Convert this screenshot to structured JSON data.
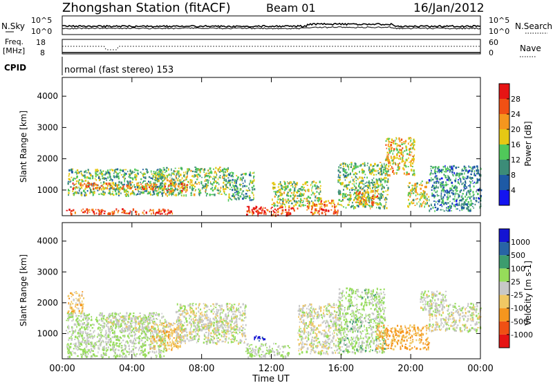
{
  "header": {
    "station": "Zhongshan Station (fitACF)",
    "beam": "Beam 01",
    "date": "16/Jan/2012"
  },
  "panels": {
    "nsky": {
      "label": "N.Sky",
      "right_label": "N.Search",
      "left_ticks": [
        "10^5",
        "10^0"
      ],
      "right_ticks": [
        "10^5",
        "10^0"
      ]
    },
    "freq": {
      "label_line1": "Freq.",
      "label_line2": "[MHz]",
      "right_label": "Nave",
      "left_ticks": [
        "18",
        "8"
      ],
      "right_ticks": [
        "60",
        "0"
      ]
    },
    "cpid": {
      "label": "CPID",
      "text": "normal (fast stereo) 153"
    }
  },
  "time_axis": {
    "label": "Time UT",
    "ticks": [
      "00:00",
      "04:00",
      "08:00",
      "12:00",
      "16:00",
      "20:00",
      "00:00"
    ]
  },
  "range_axis": {
    "label": "Slant Range [km]",
    "ticks": [
      "1000",
      "2000",
      "3000",
      "4000"
    ]
  },
  "colors": {
    "power_scale": [
      "#1414f0",
      "#1e5aa5",
      "#3c8c78",
      "#50c85a",
      "#e6c814",
      "#f5961e",
      "#f05014",
      "#e61414"
    ],
    "velocity_scale": [
      "#e61414",
      "#f05014",
      "#f5961e",
      "#f0c864",
      "#c8c8c8",
      "#96dc5a",
      "#3c9c6e",
      "#2864a5",
      "#1414d2"
    ]
  },
  "chart_data": [
    {
      "type": "heatmap",
      "title": "",
      "xlabel": "Time UT",
      "ylabel": "Slant Range [km]",
      "xlim": [
        "00:00",
        "24:00"
      ],
      "ylim": [
        180,
        4600
      ],
      "colorbar": {
        "label": "Power [dB]",
        "ticks": [
          "4",
          "8",
          "12",
          "16",
          "20",
          "24",
          "28"
        ],
        "range": [
          0,
          30
        ]
      },
      "patches": [
        {
          "t0": 0.3,
          "t1": 5.8,
          "r0": 850,
          "r1": 1700,
          "level": 12
        },
        {
          "t0": 0.5,
          "t1": 5.5,
          "r0": 1050,
          "r1": 1250,
          "level": 22
        },
        {
          "t0": 0.2,
          "t1": 6.3,
          "r0": 250,
          "r1": 420,
          "level": 25
        },
        {
          "t0": 5.3,
          "t1": 9.5,
          "r0": 850,
          "r1": 1750,
          "level": 14
        },
        {
          "t0": 5.8,
          "t1": 7.2,
          "r0": 950,
          "r1": 1250,
          "level": 22
        },
        {
          "t0": 9.5,
          "t1": 11.0,
          "r0": 700,
          "r1": 1600,
          "level": 11
        },
        {
          "t0": 10.5,
          "t1": 13.5,
          "r0": 220,
          "r1": 500,
          "level": 27
        },
        {
          "t0": 12.0,
          "t1": 14.8,
          "r0": 500,
          "r1": 1300,
          "level": 14
        },
        {
          "t0": 14.0,
          "t1": 15.8,
          "r0": 250,
          "r1": 700,
          "level": 23
        },
        {
          "t0": 15.8,
          "t1": 18.7,
          "r0": 450,
          "r1": 1900,
          "level": 13
        },
        {
          "t0": 16.8,
          "t1": 18.2,
          "r0": 550,
          "r1": 1050,
          "level": 21
        },
        {
          "t0": 18.5,
          "t1": 20.2,
          "r0": 1500,
          "r1": 2700,
          "level": 18
        },
        {
          "t0": 19.8,
          "t1": 21.0,
          "r0": 500,
          "r1": 1300,
          "level": 16
        },
        {
          "t0": 21.0,
          "t1": 24.0,
          "r0": 350,
          "r1": 1800,
          "level": 9
        }
      ]
    },
    {
      "type": "heatmap",
      "title": "",
      "xlabel": "Time UT",
      "ylabel": "Slant Range [km]",
      "xlim": [
        "00:00",
        "24:00"
      ],
      "ylim": [
        180,
        4600
      ],
      "colorbar": {
        "label": "Velocity [m s-1]",
        "ticks": [
          "-1000",
          "-500",
          "-100",
          "-25",
          "25",
          "100",
          "500",
          "1000"
        ],
        "range": [
          -1200,
          1200
        ]
      },
      "patches": [
        {
          "t0": 0.2,
          "t1": 6.0,
          "r0": 250,
          "r1": 1700,
          "level": 150
        },
        {
          "t0": 0.3,
          "t1": 1.2,
          "r0": 1700,
          "r1": 2400,
          "level": -300
        },
        {
          "t0": 2.5,
          "t1": 5.0,
          "r0": 1100,
          "r1": 1600,
          "level": 0
        },
        {
          "t0": 5.0,
          "t1": 7.0,
          "r0": 500,
          "r1": 1400,
          "level": -300
        },
        {
          "t0": 6.5,
          "t1": 10.5,
          "r0": 700,
          "r1": 2000,
          "level": 0
        },
        {
          "t0": 7.5,
          "t1": 10.0,
          "r0": 1100,
          "r1": 1500,
          "level": 0
        },
        {
          "t0": 11.0,
          "t1": 11.7,
          "r0": 780,
          "r1": 960,
          "level": 1100
        },
        {
          "t0": 10.5,
          "t1": 13.0,
          "r0": 250,
          "r1": 700,
          "level": 150
        },
        {
          "t0": 13.5,
          "t1": 16.0,
          "r0": 350,
          "r1": 2000,
          "level": 0
        },
        {
          "t0": 15.8,
          "t1": 18.5,
          "r0": 400,
          "r1": 2500,
          "level": 200
        },
        {
          "t0": 18.0,
          "t1": 21.0,
          "r0": 500,
          "r1": 1300,
          "level": -400
        },
        {
          "t0": 21.0,
          "t1": 24.0,
          "r0": 1100,
          "r1": 2000,
          "level": 0
        },
        {
          "t0": 20.5,
          "t1": 22.0,
          "r0": 1800,
          "r1": 2400,
          "level": 60
        }
      ]
    }
  ]
}
